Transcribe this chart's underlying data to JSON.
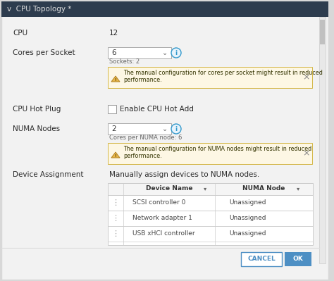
{
  "title": "v  CPU Topology *",
  "title_bg": "#2d3c4e",
  "title_fg": "#e0e0e0",
  "panel_bg": "#f2f2f2",
  "outer_bg": "#d8d8d8",
  "label_fg": "#2a2a2a",
  "sub_fg": "#666666",
  "value_fg": "#2a2a2a",
  "warning_bg": "#fdf7e4",
  "warning_border": "#d4b84a",
  "warning_text_fg": "#333300",
  "warning_icon_color": "#e6a817",
  "dropdown_bg": "#ffffff",
  "dropdown_border": "#aaaaaa",
  "info_icon_border": "#3399cc",
  "info_icon_bg": "#e8f4fc",
  "info_icon_fg": "#3399cc",
  "checkbox_bg": "#ffffff",
  "checkbox_border": "#999999",
  "table_outer_border": "#cccccc",
  "table_header_bg": "#f5f5f5",
  "table_header_fg": "#333333",
  "table_cell_fg": "#444444",
  "table_row_bg": "#ffffff",
  "scrollbar_bg": "#e8e8e8",
  "scrollbar_thumb": "#c0c0c0",
  "divider_color": "#dddddd",
  "cancel_btn_bg": "#ffffff",
  "cancel_btn_border": "#4d8fc4",
  "cancel_btn_fg": "#4d8fc4",
  "ok_btn_bg": "#4d8fc4",
  "ok_btn_fg": "#ffffff",
  "x_btn_fg": "#888888",
  "cpu_value": "12",
  "cores_per_socket_value": "6",
  "sockets_text": "Sockets: 2",
  "warn1_line1": "The manual configuration for cores per socket might result in reduced",
  "warn1_line2": "performance.",
  "cpu_hot_plug_label": "Enable CPU Hot Add",
  "numa_nodes_value": "2",
  "numa_sub_text": "Cores per NUMA node: 6",
  "warn2_line1": "The manual configuration for NUMA nodes might result in reduced",
  "warn2_line2": "performance.",
  "device_assign_text": "Manually assign devices to NUMA nodes.",
  "table_headers": [
    "Device Name",
    "NUMA Node"
  ],
  "table_rows": [
    [
      "SCSI controller 0",
      "Unassigned"
    ],
    [
      "Network adapter 1",
      "Unassigned"
    ],
    [
      "USB xHCI controller",
      "Unassigned"
    ]
  ]
}
